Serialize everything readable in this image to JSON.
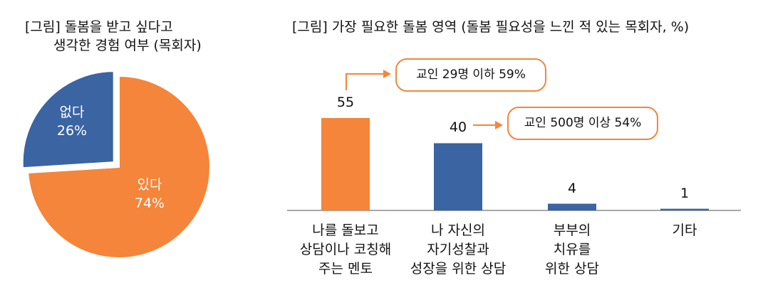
{
  "pie_title": {
    "line1": "[그림] 돌봄을 받고 싶다고",
    "line2": "생각한 경험 여부 (목회자)"
  },
  "bar_title": "[그림] 가장 필요한 돌봄 영역 (돌봄 필요성을 느낀 적 있는 목회자, %)",
  "callouts": {
    "top": "교인 29명 이하 59%",
    "bottom": "교인 500명 이상 54%"
  },
  "colors": {
    "orange": "#f4853a",
    "blue": "#3a64a2",
    "axis": "#8c8c8c",
    "arrow": "#f4853a"
  },
  "chart_data": [
    {
      "type": "pie",
      "title": "[그림] 돌봄을 받고 싶다고 생각한 경험 여부 (목회자)",
      "slices": [
        {
          "label": "있다",
          "value": 74,
          "display": "74%"
        },
        {
          "label": "없다",
          "value": 26,
          "display": "26%"
        }
      ]
    },
    {
      "type": "bar",
      "title": "[그림] 가장 필요한 돌봄 영역 (돌봄 필요성을 느낀 적 있는 목회자, %)",
      "categories": [
        [
          "나를 돌보고",
          "상담이나 코칭해",
          "주는 멘토"
        ],
        [
          "나 자신의",
          "자기성찰과",
          "성장을 위한 상담"
        ],
        [
          "부부의",
          "치유를",
          "위한 상담"
        ],
        [
          "기타"
        ]
      ],
      "values": [
        55,
        40,
        4,
        1
      ],
      "bar_colors": [
        "#f4853a",
        "#3a64a2",
        "#3a64a2",
        "#3a64a2"
      ]
    }
  ]
}
